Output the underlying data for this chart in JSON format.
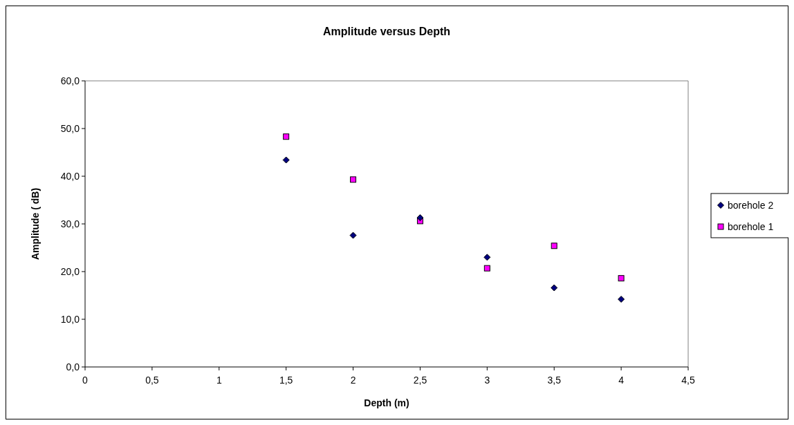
{
  "chart_data": {
    "type": "scatter",
    "title": "Amplitude versus Depth",
    "xlabel": "Depth (m)",
    "ylabel": "Amplitude ( dB)",
    "x": [
      1.5,
      2,
      2.5,
      3,
      3.5,
      4
    ],
    "series": [
      {
        "name": "borehole 2",
        "color": "#000080",
        "marker": "diamond",
        "values": [
          43.4,
          27.6,
          31.3,
          23.0,
          16.6,
          14.2
        ]
      },
      {
        "name": "borehole 1",
        "color": "#ff00ff",
        "marker": "square",
        "values": [
          48.3,
          39.3,
          30.6,
          20.7,
          25.4,
          18.6
        ]
      }
    ],
    "xlim": [
      0,
      4.5
    ],
    "xticks": [
      0,
      {
        "value": 0.5,
        "label": "0,5"
      },
      1,
      {
        "value": 1.5,
        "label": "1,5"
      },
      2,
      {
        "value": 2.5,
        "label": "2,5"
      },
      3,
      {
        "value": 3.5,
        "label": "3,5"
      },
      4,
      {
        "value": 4.5,
        "label": "4,5"
      }
    ],
    "ylim": [
      0,
      60
    ],
    "yticks": [
      {
        "value": 0,
        "label": "0,0"
      },
      {
        "value": 10,
        "label": "10,0"
      },
      {
        "value": 20,
        "label": "20,0"
      },
      {
        "value": 30,
        "label": "30,0"
      },
      {
        "value": 40,
        "label": "40,0"
      },
      {
        "value": 50,
        "label": "50,0"
      },
      {
        "value": 60,
        "label": "60,0"
      }
    ],
    "grid": false,
    "legend": "right"
  }
}
